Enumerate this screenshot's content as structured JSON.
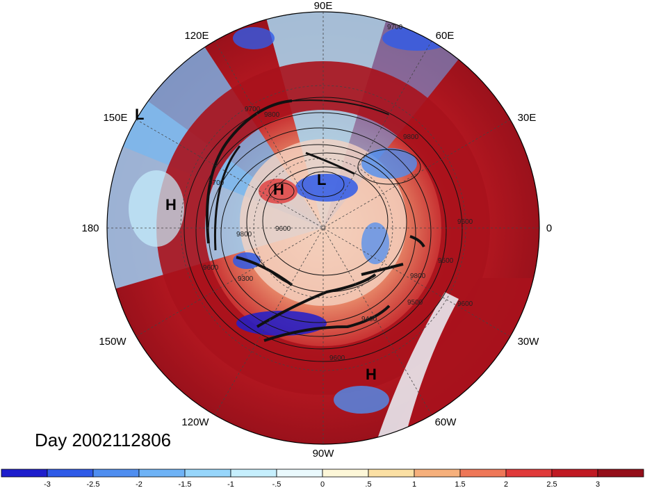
{
  "figure": {
    "date_label": "Day 2002112806",
    "longitude_labels": {
      "top": "90E",
      "upper_left": "120E",
      "upper_right": "60E",
      "left_upper": "150E",
      "right_upper": "30E",
      "left": "180",
      "right": "0",
      "left_lower": "150W",
      "right_lower": "30W",
      "lower_left": "120W",
      "lower_right": "60W",
      "bottom": "90W"
    },
    "pressure_markers": [
      "L",
      "H",
      "L",
      "H",
      "H"
    ],
    "contour_labels": [
      "9700",
      "9700",
      "9800",
      "9800",
      "9600",
      "9500",
      "9300",
      "9800",
      "9400",
      "9500",
      "9600",
      "9600",
      "9600",
      "9700",
      "9800",
      "9600"
    ]
  },
  "colorbar": {
    "tick_labels": [
      "-3",
      "-2.5",
      "-2",
      "-1.5",
      "-1",
      "-.5",
      "0",
      ".5",
      "1",
      "1.5",
      "2",
      "2.5",
      "3"
    ],
    "colors": [
      "#1e1ecc",
      "#2f5be8",
      "#4f8ef0",
      "#6fb3f6",
      "#97d6fb",
      "#c6effd",
      "#eaf9fd",
      "#fdf7d8",
      "#fbe0a4",
      "#f6b07c",
      "#ee7758",
      "#e03a3a",
      "#c01a23",
      "#940f1a"
    ]
  }
}
